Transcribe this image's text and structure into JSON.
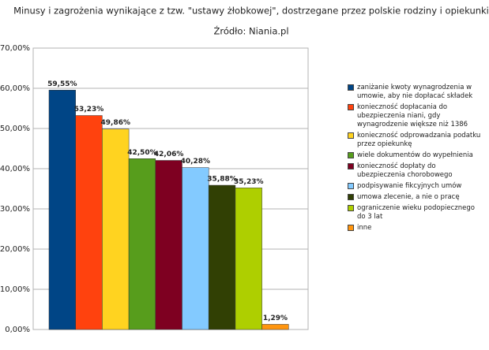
{
  "chart_data": {
    "type": "bar",
    "title": "Minusy i zagrożenia wynikające z tzw. \"ustawy żłobkowej\", dostrzegane przez polskie rodziny i opiekunki",
    "subtitle": "Źródło: Niania.pl",
    "categories": [
      "zaniżanie kwoty wynagrodzenia w umowie, aby nie dopłacać składek",
      "konieczność dopłacania do ubezpieczenia niani, gdy wynagrodzenie większe niż 1386",
      "konieczność odprowadzania podatku przez opiekunkę",
      "wiele dokumentów do wypełnienia",
      "konieczność dopłaty do ubezpieczenia chorobowego",
      "podpisywanie fikcyjnych umów",
      "umowa zlecenie, a nie o pracę",
      "ograniczenie wieku podopiecznego do 3 lat",
      "inne"
    ],
    "values": [
      59.55,
      53.23,
      49.86,
      42.5,
      42.06,
      40.28,
      35.88,
      35.23,
      1.29
    ],
    "value_labels": [
      "59,55%",
      "53,23%",
      "49,86%",
      "42,50%",
      "42,06%",
      "40,28%",
      "35,88%",
      "35,23%",
      "1,29%"
    ],
    "colors": [
      "#004586",
      "#ff420e",
      "#ffd320",
      "#579d1c",
      "#7e0021",
      "#83caff",
      "#314004",
      "#aecf00",
      "#ff950e"
    ],
    "ylim": [
      0,
      70
    ],
    "yticks": [
      {
        "value": 0,
        "label": "0,00%"
      },
      {
        "value": 10,
        "label": "10,00%"
      },
      {
        "value": 20,
        "label": "20,00%"
      },
      {
        "value": 30,
        "label": "30,00%"
      },
      {
        "value": 40,
        "label": "40,00%"
      },
      {
        "value": 50,
        "label": "50,00%"
      },
      {
        "value": 60,
        "label": "60,00%"
      },
      {
        "value": 70,
        "label": "70,00%"
      }
    ],
    "grid": true
  }
}
